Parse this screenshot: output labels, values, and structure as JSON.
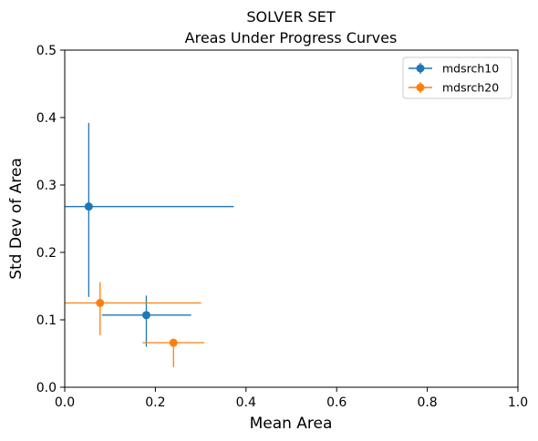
{
  "chart_data": {
    "type": "scatter",
    "title": "SOLVER SET",
    "subtitle": "Areas Under Progress Curves",
    "xlabel": "Mean Area",
    "ylabel": "Std Dev of Area",
    "xlim": [
      0.0,
      1.0
    ],
    "ylim": [
      0.0,
      0.5
    ],
    "x_ticks": [
      "0.0",
      "0.2",
      "0.4",
      "0.6",
      "0.8",
      "1.0"
    ],
    "y_ticks": [
      "0.0",
      "0.1",
      "0.2",
      "0.3",
      "0.4",
      "0.5"
    ],
    "grid": false,
    "legend_position": "top-right",
    "series": [
      {
        "name": "mdsrch10",
        "color": "#1f77b4",
        "points": [
          {
            "x": 0.053,
            "y": 0.268,
            "x_err": [
              0.0,
              0.373
            ],
            "y_err": [
              0.134,
              0.392
            ]
          },
          {
            "x": 0.18,
            "y": 0.107,
            "x_err": [
              0.082,
              0.279
            ],
            "y_err": [
              0.06,
              0.136
            ]
          }
        ]
      },
      {
        "name": "mdsrch20",
        "color": "#ff7f0e",
        "points": [
          {
            "x": 0.078,
            "y": 0.125,
            "x_err": [
              0.0,
              0.301
            ],
            "y_err": [
              0.077,
              0.156
            ]
          },
          {
            "x": 0.24,
            "y": 0.066,
            "x_err": [
              0.172,
              0.308
            ],
            "y_err": [
              0.03,
              0.066
            ]
          }
        ]
      }
    ]
  }
}
